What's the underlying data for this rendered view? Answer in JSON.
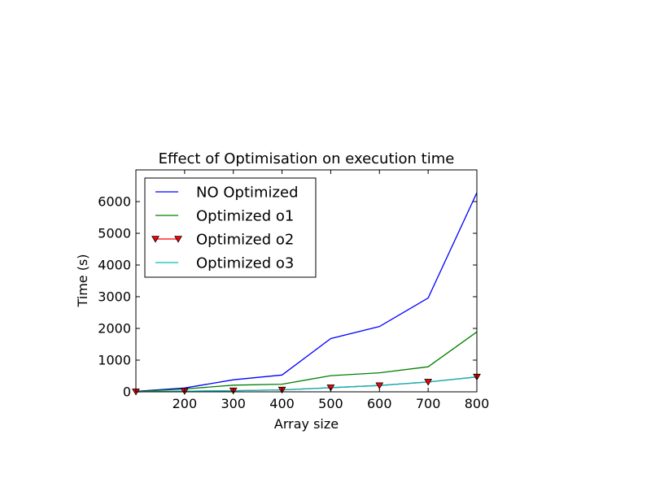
{
  "chart_data": {
    "type": "line",
    "title": "Effect of Optimisation on execution time",
    "xlabel": "Array size",
    "ylabel": "Time (s)",
    "xlim": [
      100,
      800
    ],
    "ylim": [
      0,
      7000
    ],
    "xticks": [
      200,
      300,
      400,
      500,
      600,
      700,
      800
    ],
    "yticks": [
      0,
      1000,
      2000,
      3000,
      4000,
      5000,
      6000
    ],
    "grid": false,
    "legend_position": "upper-left",
    "x": [
      100,
      200,
      300,
      400,
      500,
      600,
      700,
      800
    ],
    "series": [
      {
        "name": "NO Optimized",
        "color": "#0000ff",
        "marker": "none",
        "values": [
          15,
          120,
          380,
          530,
          1680,
          2060,
          2960,
          6280
        ]
      },
      {
        "name": "Optimized o1",
        "color": "#008000",
        "marker": "none",
        "values": [
          10,
          90,
          210,
          240,
          510,
          600,
          790,
          1890
        ]
      },
      {
        "name": "Optimized o2",
        "color": "#ff0000",
        "marker": "triangle-down",
        "values": [
          2,
          20,
          35,
          60,
          130,
          200,
          310,
          470
        ]
      },
      {
        "name": "Optimized o3",
        "color": "#00bfbf",
        "marker": "none",
        "values": [
          2,
          20,
          35,
          60,
          130,
          200,
          310,
          470
        ]
      }
    ]
  }
}
